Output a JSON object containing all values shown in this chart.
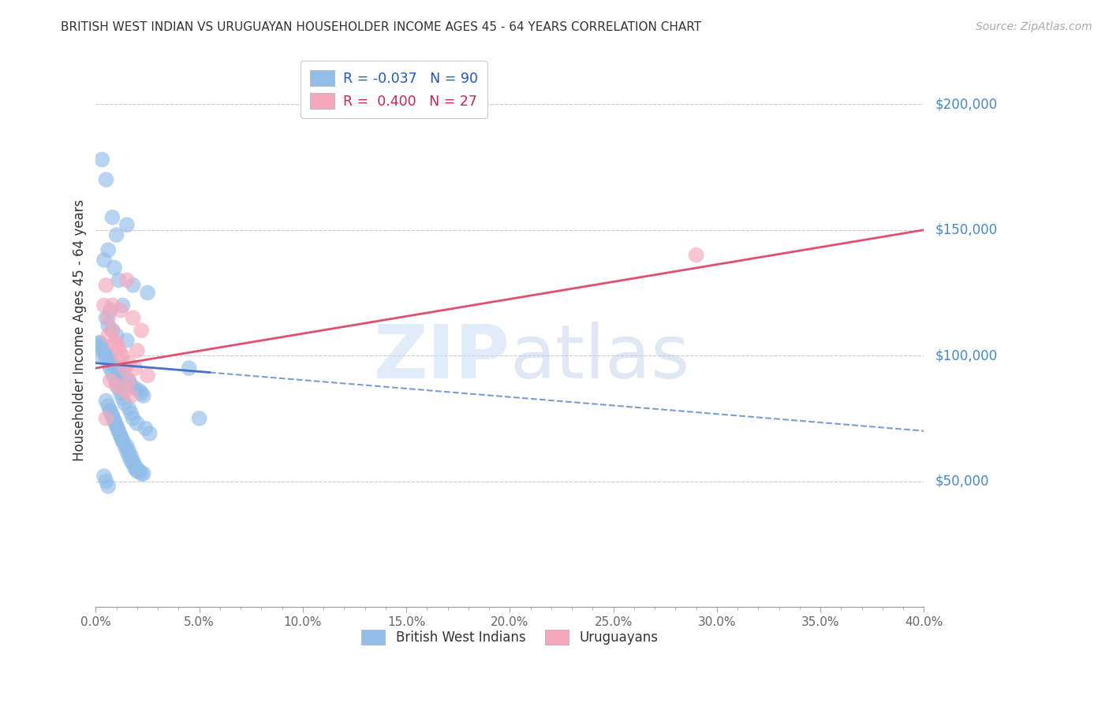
{
  "title": "BRITISH WEST INDIAN VS URUGUAYAN HOUSEHOLDER INCOME AGES 45 - 64 YEARS CORRELATION CHART",
  "source": "Source: ZipAtlas.com",
  "ylabel": "Householder Income Ages 45 - 64 years",
  "xtick_labels": [
    "0.0%",
    "",
    "",
    "",
    "",
    "",
    "",
    "",
    "",
    "5.0%",
    "",
    "",
    "",
    "",
    "",
    "",
    "",
    "",
    "",
    "10.0%",
    "",
    "",
    "",
    "",
    "",
    "",
    "",
    "",
    "",
    "15.0%",
    "",
    "",
    "",
    "",
    "",
    "",
    "",
    "",
    "",
    "20.0%",
    "",
    "",
    "",
    "",
    "",
    "",
    "",
    "",
    "",
    "25.0%",
    "",
    "",
    "",
    "",
    "",
    "",
    "",
    "",
    "",
    "30.0%",
    "",
    "",
    "",
    "",
    "",
    "",
    "",
    "",
    "",
    "35.0%",
    "",
    "",
    "",
    "",
    "",
    "",
    "",
    "",
    "",
    "40.0%"
  ],
  "xtick_vals_major": [
    0,
    5,
    10,
    15,
    20,
    25,
    30,
    35,
    40
  ],
  "ytick_labels": [
    "$50,000",
    "$100,000",
    "$150,000",
    "$200,000"
  ],
  "ytick_vals": [
    50000,
    100000,
    150000,
    200000
  ],
  "xlim": [
    0,
    40
  ],
  "ylim": [
    0,
    220000
  ],
  "watermark_zip": "ZIP",
  "watermark_atlas": "atlas",
  "blue_color": "#92bde8",
  "pink_color": "#f5a8bc",
  "blue_line_color": "#4472c4",
  "pink_line_color": "#e05070",
  "blue_line_y0": 97000,
  "blue_line_y40": 70000,
  "pink_line_y0": 95000,
  "pink_line_y40": 150000,
  "blue_solid_end_x": 5.5,
  "blue_scatter_x": [
    0.3,
    0.8,
    0.5,
    1.0,
    1.5,
    0.6,
    0.4,
    0.9,
    1.1,
    1.8,
    2.5,
    1.3,
    0.7,
    0.5,
    0.6,
    0.8,
    1.0,
    1.5,
    0.3,
    0.4,
    0.6,
    0.7,
    0.9,
    1.1,
    1.2,
    1.4,
    1.6,
    1.7,
    1.9,
    2.1,
    2.2,
    2.3,
    0.2,
    0.3,
    0.4,
    0.5,
    0.6,
    0.7,
    0.8,
    0.9,
    1.0,
    1.1,
    1.2,
    1.3,
    1.4,
    1.6,
    1.7,
    1.8,
    2.0,
    2.4,
    2.6,
    0.5,
    0.6,
    0.7,
    0.8,
    0.9,
    1.0,
    1.1,
    1.2,
    1.3,
    1.5,
    1.6,
    1.7,
    1.8,
    1.9,
    2.0,
    2.1,
    2.2,
    0.4,
    0.5,
    0.6,
    0.7,
    0.8,
    0.9,
    1.0,
    1.1,
    1.2,
    1.3,
    1.4,
    1.5,
    1.6,
    1.7,
    1.8,
    1.9,
    2.0,
    2.3,
    4.5,
    5.0,
    0.15,
    0.2
  ],
  "blue_scatter_y": [
    178000,
    155000,
    170000,
    148000,
    152000,
    142000,
    138000,
    135000,
    130000,
    128000,
    125000,
    120000,
    118000,
    115000,
    112000,
    110000,
    108000,
    106000,
    104000,
    102000,
    100000,
    98000,
    96000,
    95000,
    93000,
    92000,
    90000,
    88000,
    87000,
    86000,
    85000,
    84000,
    105000,
    103000,
    101000,
    99000,
    97000,
    95000,
    93000,
    91000,
    89000,
    87000,
    85000,
    83000,
    81000,
    79000,
    77000,
    75000,
    73000,
    71000,
    69000,
    82000,
    80000,
    78000,
    76000,
    74000,
    72000,
    70000,
    68000,
    66000,
    64000,
    62000,
    60000,
    58000,
    56000,
    55000,
    54000,
    53000,
    52000,
    50000,
    48000,
    78000,
    76000,
    74000,
    72000,
    70000,
    68000,
    66000,
    64000,
    62000,
    60000,
    58000,
    57000,
    55000,
    54000,
    53000,
    95000,
    75000,
    105000,
    100000
  ],
  "pink_scatter_x": [
    0.5,
    0.8,
    1.2,
    1.5,
    1.8,
    2.2,
    0.6,
    0.9,
    1.1,
    1.3,
    1.6,
    1.9,
    2.5,
    0.7,
    1.0,
    1.4,
    1.7,
    2.0,
    0.4,
    0.6,
    0.8,
    1.0,
    1.2,
    1.4,
    1.6,
    29.0,
    0.5
  ],
  "pink_scatter_y": [
    128000,
    120000,
    118000,
    130000,
    115000,
    110000,
    108000,
    105000,
    103000,
    100000,
    97000,
    95000,
    92000,
    90000,
    88000,
    86000,
    84000,
    102000,
    120000,
    115000,
    110000,
    105000,
    100000,
    95000,
    90000,
    140000,
    75000
  ],
  "legend1_R": "R = -0.037",
  "legend1_N": "N = 90",
  "legend2_R": "R =  0.400",
  "legend2_N": "N = 27",
  "legend_bottom1": "British West Indians",
  "legend_bottom2": "Uruguayans"
}
